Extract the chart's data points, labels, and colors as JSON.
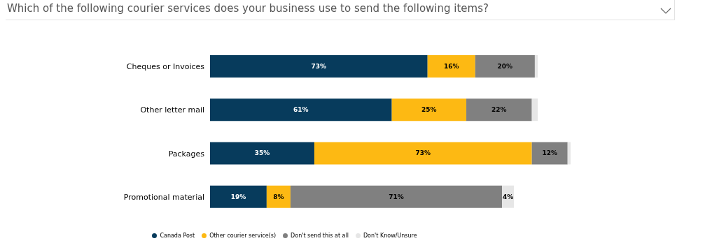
{
  "chart_data": {
    "type": "bar",
    "orientation": "horizontal",
    "stacked": true,
    "title": "Which of the following courier services does your business use to send the following items?",
    "categories": [
      "Cheques or Invoices",
      "Other letter mail",
      "Packages",
      "Promotional material"
    ],
    "series": [
      {
        "name": "Canada Post",
        "color": "#073b5c",
        "values": [
          73,
          61,
          35,
          19
        ],
        "value_labels": [
          "73%",
          "61%",
          "35%",
          "19%"
        ]
      },
      {
        "name": "Other courier service(s)",
        "color": "#fdb913",
        "values": [
          16,
          25,
          73,
          8
        ],
        "value_labels": [
          "16%",
          "25%",
          "73%",
          "8%"
        ]
      },
      {
        "name": "Don't send this at all",
        "color": "#808080",
        "values": [
          20,
          22,
          12,
          71
        ],
        "value_labels": [
          "20%",
          "22%",
          "12%",
          "71%"
        ]
      },
      {
        "name": "Don't Know/Unsure",
        "color": "#e6e6e6",
        "values": [
          1,
          2,
          1,
          4
        ],
        "value_labels": [
          null,
          null,
          null,
          "4%"
        ]
      }
    ],
    "legend": "bottom",
    "grid": false,
    "tick_labels": "y"
  }
}
